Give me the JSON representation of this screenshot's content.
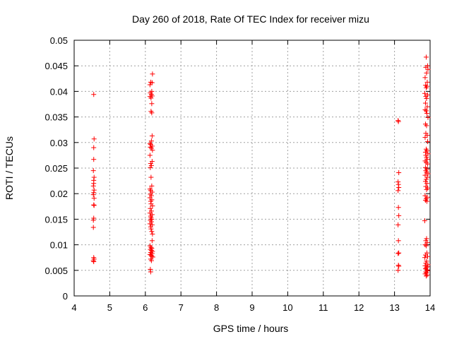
{
  "chart_data": {
    "type": "scatter",
    "title": "Day 260 of 2018, Rate Of TEC Index for receiver mizu",
    "xlabel": "GPS time / hours",
    "ylabel": "ROTI / TECUs",
    "xlim": [
      4,
      14
    ],
    "ylim": [
      0,
      0.05
    ],
    "xticks": [
      4,
      5,
      6,
      7,
      8,
      9,
      10,
      11,
      12,
      13,
      14
    ],
    "xtick_labels": [
      "4",
      "5",
      "6",
      "7",
      "8",
      "9",
      "10",
      "11",
      "12",
      "13",
      "14"
    ],
    "yticks": [
      0,
      0.005,
      0.01,
      0.015,
      0.02,
      0.025,
      0.03,
      0.035,
      0.04,
      0.045,
      0.05
    ],
    "ytick_labels": [
      "0",
      "0.005",
      "0.01",
      "0.015",
      "0.02",
      "0.025",
      "0.03",
      "0.035",
      "0.04",
      "0.045",
      "0.05"
    ],
    "grid": true,
    "marker": "+",
    "marker_color": "#ff0000",
    "series": [
      {
        "points": [
          [
            4.55,
            0.0394
          ],
          [
            4.56,
            0.0307
          ],
          [
            4.55,
            0.029
          ],
          [
            4.55,
            0.0267
          ],
          [
            4.54,
            0.0245
          ],
          [
            4.56,
            0.0232
          ],
          [
            4.55,
            0.0226
          ],
          [
            4.55,
            0.022
          ],
          [
            4.54,
            0.0215
          ],
          [
            4.56,
            0.0207
          ],
          [
            4.55,
            0.0202
          ],
          [
            4.54,
            0.0198
          ],
          [
            4.56,
            0.0191
          ],
          [
            4.55,
            0.0178
          ],
          [
            4.56,
            0.0177
          ],
          [
            4.55,
            0.0152
          ],
          [
            4.54,
            0.0148
          ],
          [
            4.54,
            0.0134
          ],
          [
            4.55,
            0.0075
          ],
          [
            4.56,
            0.0072
          ],
          [
            4.54,
            0.0069
          ],
          [
            4.55,
            0.0067
          ],
          [
            6.2,
            0.0434
          ],
          [
            6.15,
            0.0418
          ],
          [
            6.19,
            0.0417
          ],
          [
            6.13,
            0.0413
          ],
          [
            6.18,
            0.04
          ],
          [
            6.14,
            0.0397
          ],
          [
            6.17,
            0.0394
          ],
          [
            6.19,
            0.0391
          ],
          [
            6.13,
            0.039
          ],
          [
            6.16,
            0.0387
          ],
          [
            6.18,
            0.0376
          ],
          [
            6.16,
            0.0361
          ],
          [
            6.18,
            0.0358
          ],
          [
            6.19,
            0.0313
          ],
          [
            6.17,
            0.0303
          ],
          [
            6.13,
            0.0298
          ],
          [
            6.15,
            0.0296
          ],
          [
            6.19,
            0.0293
          ],
          [
            6.14,
            0.0291
          ],
          [
            6.17,
            0.0289
          ],
          [
            6.2,
            0.0285
          ],
          [
            6.13,
            0.0275
          ],
          [
            6.19,
            0.0263
          ],
          [
            6.15,
            0.0259
          ],
          [
            6.17,
            0.0255
          ],
          [
            6.14,
            0.0251
          ],
          [
            6.16,
            0.0232
          ],
          [
            6.18,
            0.0215
          ],
          [
            6.13,
            0.0209
          ],
          [
            6.15,
            0.0206
          ],
          [
            6.19,
            0.0203
          ],
          [
            6.14,
            0.0199
          ],
          [
            6.17,
            0.0196
          ],
          [
            6.13,
            0.0192
          ],
          [
            6.18,
            0.0188
          ],
          [
            6.15,
            0.0185
          ],
          [
            6.16,
            0.018
          ],
          [
            6.2,
            0.0176
          ],
          [
            6.14,
            0.0171
          ],
          [
            6.17,
            0.0166
          ],
          [
            6.13,
            0.0162
          ],
          [
            6.19,
            0.0159
          ],
          [
            6.15,
            0.0156
          ],
          [
            6.16,
            0.0153
          ],
          [
            6.18,
            0.015
          ],
          [
            6.14,
            0.0148
          ],
          [
            6.17,
            0.0145
          ],
          [
            6.13,
            0.0141
          ],
          [
            6.19,
            0.0139
          ],
          [
            6.15,
            0.0135
          ],
          [
            6.16,
            0.0131
          ],
          [
            6.18,
            0.0126
          ],
          [
            6.2,
            0.0121
          ],
          [
            6.19,
            0.0108
          ],
          [
            6.13,
            0.0098
          ],
          [
            6.16,
            0.0095
          ],
          [
            6.18,
            0.0093
          ],
          [
            6.14,
            0.0091
          ],
          [
            6.17,
            0.0089
          ],
          [
            6.2,
            0.0087
          ],
          [
            6.15,
            0.0085
          ],
          [
            6.19,
            0.0083
          ],
          [
            6.13,
            0.0081
          ],
          [
            6.16,
            0.008
          ],
          [
            6.18,
            0.0078
          ],
          [
            6.21,
            0.0076
          ],
          [
            6.15,
            0.0072
          ],
          [
            6.17,
            0.0069
          ],
          [
            6.14,
            0.0052
          ],
          [
            6.15,
            0.0047
          ],
          [
            13.1,
            0.0343
          ],
          [
            13.11,
            0.0341
          ],
          [
            13.12,
            0.0241
          ],
          [
            13.1,
            0.0223
          ],
          [
            13.11,
            0.0218
          ],
          [
            13.12,
            0.0212
          ],
          [
            13.1,
            0.0206
          ],
          [
            13.11,
            0.0173
          ],
          [
            13.12,
            0.0157
          ],
          [
            13.1,
            0.0139
          ],
          [
            13.11,
            0.0108
          ],
          [
            13.12,
            0.0084
          ],
          [
            13.1,
            0.0083
          ],
          [
            13.11,
            0.006
          ],
          [
            13.12,
            0.0058
          ],
          [
            13.1,
            0.005
          ],
          [
            13.89,
            0.0467
          ],
          [
            13.93,
            0.045
          ],
          [
            13.88,
            0.0447
          ],
          [
            13.94,
            0.0443
          ],
          [
            13.9,
            0.0436
          ],
          [
            13.86,
            0.0427
          ],
          [
            13.92,
            0.0418
          ],
          [
            13.87,
            0.0412
          ],
          [
            13.91,
            0.041
          ],
          [
            13.89,
            0.0407
          ],
          [
            13.85,
            0.0396
          ],
          [
            13.93,
            0.0393
          ],
          [
            13.88,
            0.039
          ],
          [
            13.9,
            0.0386
          ],
          [
            13.87,
            0.0377
          ],
          [
            13.92,
            0.037
          ],
          [
            13.86,
            0.0364
          ],
          [
            13.89,
            0.0362
          ],
          [
            13.91,
            0.0357
          ],
          [
            13.94,
            0.0349
          ],
          [
            13.87,
            0.0336
          ],
          [
            13.9,
            0.0333
          ],
          [
            13.88,
            0.0318
          ],
          [
            13.92,
            0.0314
          ],
          [
            13.86,
            0.031
          ],
          [
            13.93,
            0.0302
          ],
          [
            13.89,
            0.0287
          ],
          [
            13.91,
            0.0284
          ],
          [
            13.87,
            0.0281
          ],
          [
            13.94,
            0.0278
          ],
          [
            13.88,
            0.0275
          ],
          [
            13.9,
            0.0271
          ],
          [
            13.92,
            0.0267
          ],
          [
            13.86,
            0.0264
          ],
          [
            13.89,
            0.0261
          ],
          [
            13.93,
            0.0258
          ],
          [
            13.87,
            0.0251
          ],
          [
            13.91,
            0.0248
          ],
          [
            13.88,
            0.0245
          ],
          [
            13.9,
            0.0242
          ],
          [
            13.94,
            0.0239
          ],
          [
            13.86,
            0.0236
          ],
          [
            13.92,
            0.0232
          ],
          [
            13.89,
            0.0228
          ],
          [
            13.87,
            0.0224
          ],
          [
            13.91,
            0.022
          ],
          [
            13.88,
            0.0214
          ],
          [
            13.93,
            0.0211
          ],
          [
            13.9,
            0.0208
          ],
          [
            13.86,
            0.0196
          ],
          [
            13.92,
            0.0193
          ],
          [
            13.89,
            0.019
          ],
          [
            13.87,
            0.0187
          ],
          [
            13.91,
            0.0185
          ],
          [
            13.85,
            0.0147
          ],
          [
            13.9,
            0.0112
          ],
          [
            13.88,
            0.0108
          ],
          [
            13.92,
            0.0104
          ],
          [
            13.86,
            0.01
          ],
          [
            13.89,
            0.0098
          ],
          [
            13.91,
            0.0084
          ],
          [
            13.87,
            0.008
          ],
          [
            13.93,
            0.0077
          ],
          [
            13.85,
            0.0075
          ],
          [
            13.9,
            0.0068
          ],
          [
            13.88,
            0.0064
          ],
          [
            13.94,
            0.0061
          ],
          [
            13.86,
            0.0059
          ],
          [
            13.92,
            0.0057
          ],
          [
            13.89,
            0.0055
          ],
          [
            13.87,
            0.0053
          ],
          [
            13.91,
            0.0051
          ],
          [
            13.93,
            0.0049
          ],
          [
            13.88,
            0.0047
          ],
          [
            13.9,
            0.0045
          ],
          [
            13.86,
            0.0043
          ],
          [
            13.92,
            0.0041
          ],
          [
            13.89,
            0.0039
          ]
        ]
      }
    ]
  }
}
